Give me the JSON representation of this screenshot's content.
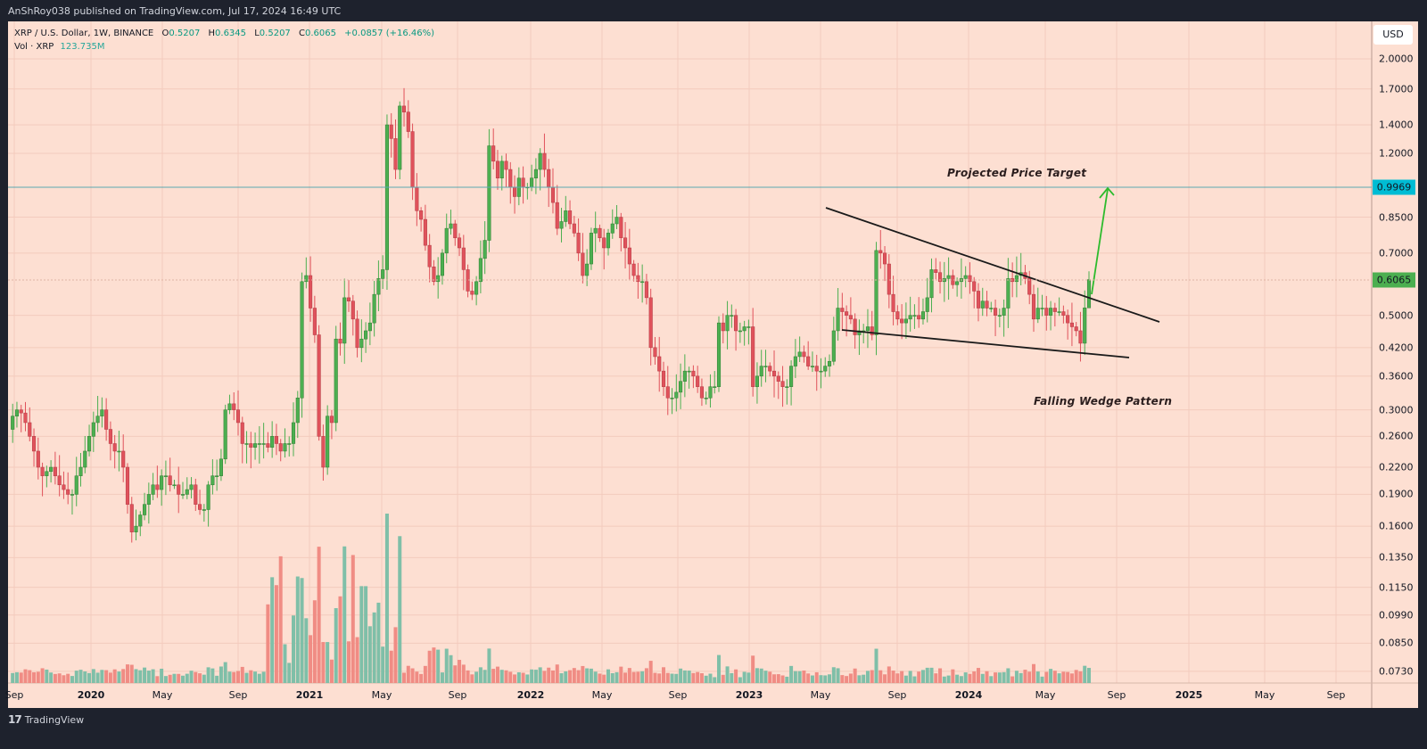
{
  "header": {
    "published_by": "AnShRoy038 published on TradingView.com, Jul 17, 2024 16:49 UTC"
  },
  "legend": {
    "symbol": "XRP / U.S. Dollar, 1W, BINANCE",
    "open_label": "O",
    "open": "0.5207",
    "high_label": "H",
    "high": "0.6345",
    "low_label": "L",
    "low": "0.5207",
    "close_label": "C",
    "close": "0.6065",
    "change": "+0.0857 (+16.46%)",
    "volume_label": "Vol · XRP",
    "volume": "123.735M"
  },
  "price_axis": {
    "currency": "USD",
    "ticks": [
      "2.0000",
      "1.7000",
      "1.4000",
      "1.2000",
      "0.8500",
      "0.7000",
      "0.5000",
      "0.4200",
      "0.3600",
      "0.3000",
      "0.2600",
      "0.2200",
      "0.1900",
      "0.1600",
      "0.1350",
      "0.1150",
      "0.0990",
      "0.0850",
      "0.0730"
    ],
    "target_tag": "0.9969",
    "last_price_tag": "0.6065"
  },
  "time_axis": {
    "labels": [
      {
        "text": "Sep",
        "year": false
      },
      {
        "text": "2020",
        "year": true
      },
      {
        "text": "May",
        "year": false
      },
      {
        "text": "Sep",
        "year": false
      },
      {
        "text": "2021",
        "year": true
      },
      {
        "text": "May",
        "year": false
      },
      {
        "text": "Sep",
        "year": false
      },
      {
        "text": "2022",
        "year": true
      },
      {
        "text": "May",
        "year": false
      },
      {
        "text": "Sep",
        "year": false
      },
      {
        "text": "2023",
        "year": true
      },
      {
        "text": "May",
        "year": false
      },
      {
        "text": "Sep",
        "year": false
      },
      {
        "text": "2024",
        "year": true
      },
      {
        "text": "May",
        "year": false
      },
      {
        "text": "Sep",
        "year": false
      },
      {
        "text": "2025",
        "year": true
      },
      {
        "text": "May",
        "year": false
      },
      {
        "text": "Sep",
        "year": false
      }
    ]
  },
  "annotations": {
    "projected_target": "Projected Price Target",
    "pattern": "Falling Wedge Pattern"
  },
  "footer": {
    "brand": "TradingView",
    "logo": "17"
  },
  "colors": {
    "background": "#fddfd2",
    "up": "#4caf50",
    "down": "#e0525b",
    "vol_up": "#7fbfa8",
    "vol_down": "#f08c84",
    "target_line": "#5aa8b0",
    "target_tag": "#00bcd4",
    "last_tag": "#4caf50",
    "arrow": "#2dbb2d",
    "trendline": "#1a1a1a"
  },
  "chart_data": {
    "type": "candlestick",
    "title": "XRP / U.S. Dollar, 1W, BINANCE",
    "scale": "log",
    "ylim": [
      0.07,
      2.1
    ],
    "x_range": [
      "2019-09",
      "2025-09"
    ],
    "last_candle": {
      "open": 0.5207,
      "high": 0.6345,
      "low": 0.5207,
      "close": 0.6065,
      "volume": "123.735M"
    },
    "horizontal_line": {
      "price": 0.9969,
      "label": "Projected Price Target"
    },
    "trendlines": [
      {
        "name": "wedge-upper",
        "from": {
          "date": "2023-05",
          "price": 0.88
        },
        "to": {
          "date": "2024-10",
          "price": 0.485
        }
      },
      {
        "name": "wedge-lower",
        "from": {
          "date": "2023-06",
          "price": 0.455
        },
        "to": {
          "date": "2024-09",
          "price": 0.4
        }
      }
    ],
    "arrow": {
      "from": {
        "date": "2024-07",
        "price": 0.6
      },
      "to": {
        "date": "2024-08",
        "price": 0.99
      }
    },
    "weekly_closes": [
      0.26,
      0.255,
      0.26,
      0.27,
      0.29,
      0.3,
      0.295,
      0.28,
      0.26,
      0.24,
      0.22,
      0.21,
      0.215,
      0.22,
      0.21,
      0.2,
      0.195,
      0.19,
      0.19,
      0.21,
      0.22,
      0.24,
      0.26,
      0.28,
      0.29,
      0.3,
      0.27,
      0.25,
      0.24,
      0.24,
      0.22,
      0.18,
      0.155,
      0.16,
      0.17,
      0.18,
      0.19,
      0.2,
      0.195,
      0.21,
      0.21,
      0.2,
      0.2,
      0.19,
      0.19,
      0.195,
      0.2,
      0.18,
      0.175,
      0.175,
      0.2,
      0.21,
      0.21,
      0.23,
      0.3,
      0.31,
      0.3,
      0.28,
      0.25,
      0.25,
      0.245,
      0.25,
      0.25,
      0.25,
      0.245,
      0.26,
      0.25,
      0.24,
      0.25,
      0.25,
      0.28,
      0.32,
      0.6,
      0.62,
      0.52,
      0.45,
      0.26,
      0.22,
      0.29,
      0.28,
      0.44,
      0.43,
      0.55,
      0.54,
      0.49,
      0.42,
      0.44,
      0.46,
      0.48,
      0.56,
      0.61,
      0.64,
      1.4,
      1.3,
      1.1,
      1.55,
      1.5,
      1.35,
      1.0,
      0.88,
      0.84,
      0.73,
      0.65,
      0.6,
      0.62,
      0.7,
      0.8,
      0.82,
      0.76,
      0.72,
      0.64,
      0.57,
      0.56,
      0.6,
      0.68,
      0.75,
      1.25,
      1.15,
      1.05,
      1.15,
      1.1,
      1.0,
      0.95,
      1.05,
      1.0,
      1.0,
      1.05,
      1.1,
      1.2,
      1.1,
      1.0,
      0.92,
      0.8,
      0.83,
      0.88,
      0.82,
      0.78,
      0.7,
      0.62,
      0.66,
      0.78,
      0.8,
      0.76,
      0.72,
      0.78,
      0.82,
      0.85,
      0.76,
      0.72,
      0.66,
      0.62,
      0.6,
      0.6,
      0.55,
      0.42,
      0.4,
      0.37,
      0.34,
      0.32,
      0.32,
      0.33,
      0.35,
      0.37,
      0.37,
      0.36,
      0.34,
      0.32,
      0.32,
      0.34,
      0.34,
      0.48,
      0.46,
      0.5,
      0.5,
      0.46,
      0.46,
      0.47,
      0.47,
      0.34,
      0.36,
      0.38,
      0.38,
      0.37,
      0.36,
      0.35,
      0.34,
      0.34,
      0.38,
      0.4,
      0.41,
      0.4,
      0.38,
      0.38,
      0.37,
      0.37,
      0.38,
      0.39,
      0.46,
      0.52,
      0.51,
      0.5,
      0.49,
      0.45,
      0.46,
      0.46,
      0.47,
      0.45,
      0.71,
      0.7,
      0.66,
      0.56,
      0.51,
      0.49,
      0.48,
      0.49,
      0.5,
      0.5,
      0.49,
      0.51,
      0.55,
      0.64,
      0.63,
      0.6,
      0.61,
      0.62,
      0.59,
      0.6,
      0.61,
      0.62,
      0.6,
      0.57,
      0.52,
      0.54,
      0.52,
      0.52,
      0.5,
      0.5,
      0.52,
      0.61,
      0.6,
      0.62,
      0.63,
      0.61,
      0.56,
      0.49,
      0.52,
      0.52,
      0.5,
      0.52,
      0.51,
      0.51,
      0.5,
      0.48,
      0.47,
      0.46,
      0.43,
      0.5207,
      0.6065
    ]
  }
}
